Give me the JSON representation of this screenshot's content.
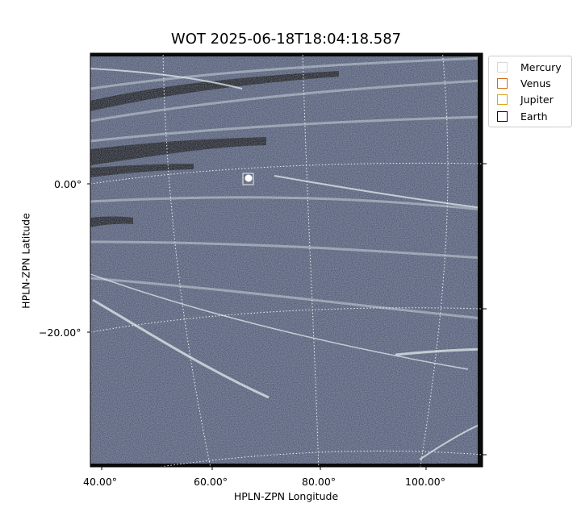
{
  "title": "WOT 2025-06-18T18:04:18.587",
  "xlabel": "HPLN-ZPN Longitude",
  "ylabel": "HPLN-ZPN Latitude",
  "x_ticks": [
    "40.00°",
    "60.00°",
    "80.00°",
    "100.00°"
  ],
  "y_ticks": [
    "0.00°",
    "−20.00°"
  ],
  "legend": [
    {
      "label": "Mercury",
      "color": "#d9d9d9",
      "icon": "square-outline-icon"
    },
    {
      "label": "Venus",
      "color": "#d2691e",
      "icon": "square-outline-icon"
    },
    {
      "label": "Jupiter",
      "color": "#daa520",
      "icon": "square-outline-icon"
    },
    {
      "label": "Earth",
      "color": "#000080",
      "icon": "square-outline-icon"
    }
  ],
  "colors": {
    "image_bg": "#4d5570",
    "streak": "#c8d4d8",
    "dark_band": "#0f1015",
    "grid": "#ffffff"
  },
  "markers": [
    {
      "label": "",
      "icon": "planet-marker-icon",
      "color": "#d9d9d9"
    }
  ]
}
